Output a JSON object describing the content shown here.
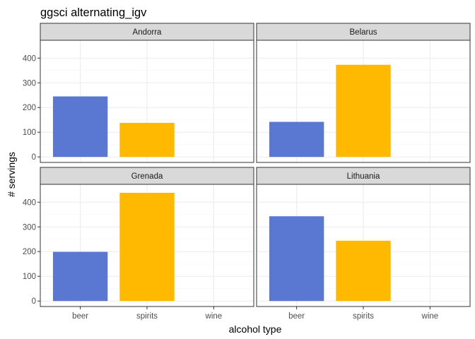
{
  "chart_data": {
    "type": "bar",
    "title": "ggsci alternating_igv",
    "xlabel": "alcohol type",
    "ylabel": "# servings",
    "categories": [
      "beer",
      "spirits",
      "wine"
    ],
    "ylim": [
      0,
      450
    ],
    "yticks": [
      "0",
      "100",
      "200",
      "300",
      "400"
    ],
    "grid": true,
    "colors": {
      "beer": "#5A78D2",
      "spirits": "#FFB900",
      "wine": "#5A78D2",
      "strip_fill": "#D9D9D9",
      "panel_border": "#333333",
      "grid_major": "#EBEBEB",
      "grid_minor": "#F5F5F5"
    },
    "facets": [
      {
        "name": "Andorra",
        "values": [
          245,
          138,
          0
        ]
      },
      {
        "name": "Belarus",
        "values": [
          142,
          373,
          0
        ]
      },
      {
        "name": "Grenada",
        "values": [
          199,
          438,
          0
        ]
      },
      {
        "name": "Lithuania",
        "values": [
          343,
          244,
          0
        ]
      }
    ]
  }
}
